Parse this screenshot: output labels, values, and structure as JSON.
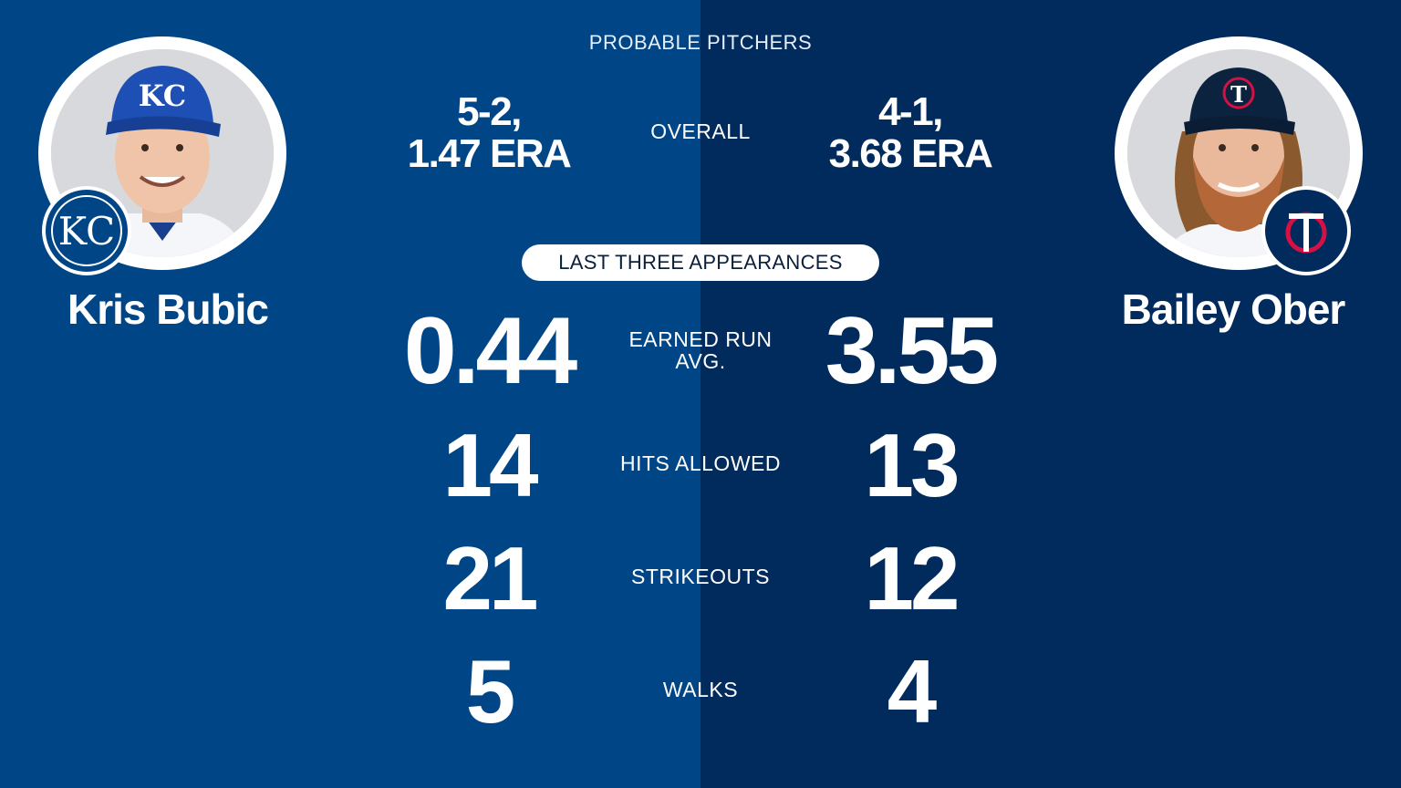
{
  "header": {
    "title": "PROBABLE PITCHERS"
  },
  "overall": {
    "label": "OVERALL",
    "left_line1": "5-2,",
    "left_line2": "1.47 ERA",
    "right_line1": "4-1,",
    "right_line2": "3.68 ERA"
  },
  "section": {
    "title": "LAST THREE APPEARANCES"
  },
  "players": {
    "left": {
      "name": "Kris Bubic",
      "team_logo": "kc-logo"
    },
    "right": {
      "name": "Bailey Ober",
      "team_logo": "tc-logo"
    }
  },
  "stats": {
    "era": {
      "label_line1": "EARNED RUN",
      "label_line2": "AVG.",
      "left": "0.44",
      "right": "3.55"
    },
    "hits": {
      "label": "HITS ALLOWED",
      "left": "14",
      "right": "13"
    },
    "strikeouts": {
      "label": "STRIKEOUTS",
      "left": "21",
      "right": "12"
    },
    "walks": {
      "label": "WALKS",
      "left": "5",
      "right": "4"
    }
  },
  "colors": {
    "left_bg": "#004687",
    "right_bg": "#002b5c",
    "twins_red": "#d31145"
  }
}
